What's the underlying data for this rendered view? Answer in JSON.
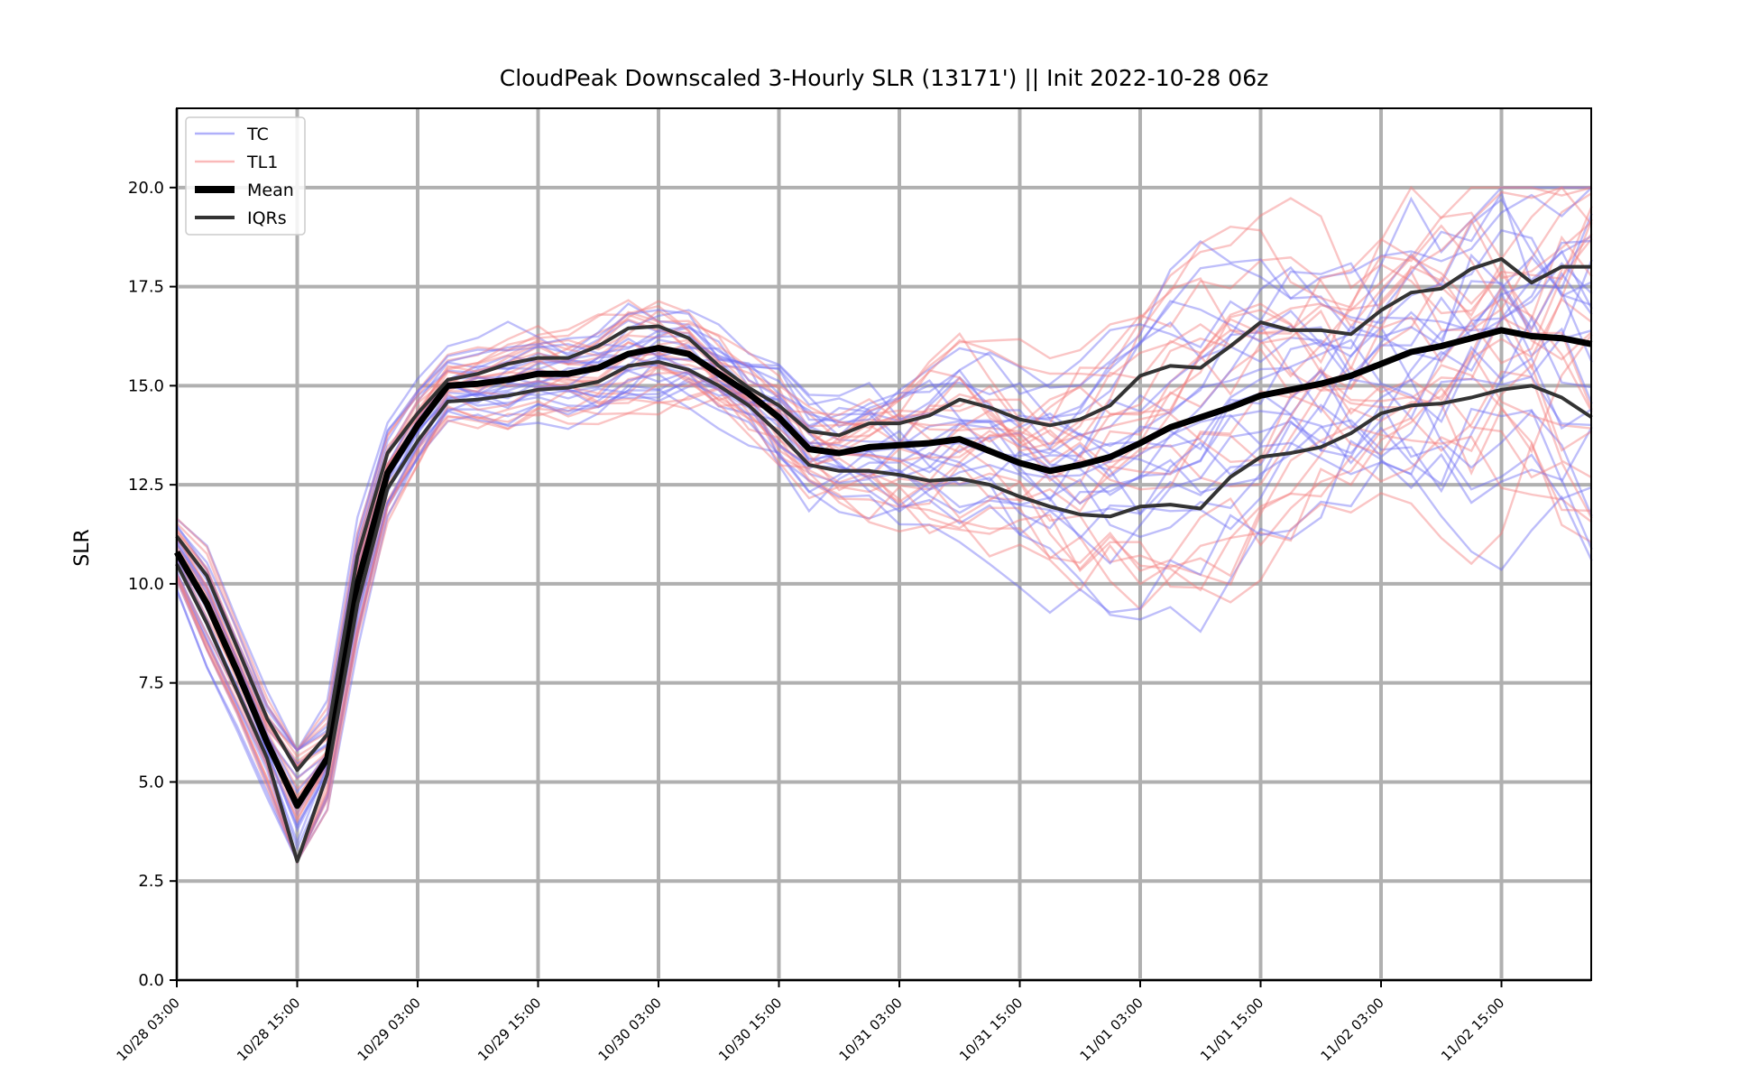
{
  "chart_data": {
    "type": "line",
    "title": "CloudPeak Downscaled 3-Hourly SLR (13171') || Init 2022-10-28 06z",
    "xlabel": "",
    "ylabel": "SLR",
    "ylim": [
      0,
      22
    ],
    "grid": true,
    "legend_placement": "top-left",
    "x_ticks": [
      "10/28 03:00",
      "10/28 15:00",
      "10/29 03:00",
      "10/29 15:00",
      "10/30 03:00",
      "10/30 15:00",
      "10/31 03:00",
      "10/31 15:00",
      "11/01 03:00",
      "11/01 15:00",
      "11/02 03:00",
      "11/02 15:00"
    ],
    "y_ticks": [
      "0.0",
      "2.5",
      "5.0",
      "7.5",
      "10.0",
      "12.5",
      "15.0",
      "17.5",
      "20.0"
    ],
    "x": [
      "10/28 03:00",
      "10/28 06:00",
      "10/28 09:00",
      "10/28 12:00",
      "10/28 15:00",
      "10/28 18:00",
      "10/28 21:00",
      "10/29 00:00",
      "10/29 03:00",
      "10/29 06:00",
      "10/29 09:00",
      "10/29 12:00",
      "10/29 15:00",
      "10/29 18:00",
      "10/29 21:00",
      "10/30 00:00",
      "10/30 03:00",
      "10/30 06:00",
      "10/30 09:00",
      "10/30 12:00",
      "10/30 15:00",
      "10/30 18:00",
      "10/30 21:00",
      "10/31 00:00",
      "10/31 03:00",
      "10/31 06:00",
      "10/31 09:00",
      "10/31 12:00",
      "10/31 15:00",
      "10/31 18:00",
      "10/31 21:00",
      "11/01 00:00",
      "11/01 03:00",
      "11/01 06:00",
      "11/01 09:00",
      "11/01 12:00",
      "11/01 15:00",
      "11/01 18:00",
      "11/01 21:00",
      "11/02 00:00",
      "11/02 03:00",
      "11/02 06:00",
      "11/02 09:00",
      "11/02 12:00",
      "11/02 15:00",
      "11/02 18:00",
      "11/02 21:00",
      "11/03 00:00"
    ],
    "legend": [
      {
        "label": "TC",
        "color": "#6f6ff5",
        "style": "thin"
      },
      {
        "label": "TL1",
        "color": "#f57f7f",
        "style": "thin"
      },
      {
        "label": "Mean",
        "color": "#000000",
        "style": "thick"
      },
      {
        "label": "IQRs",
        "color": "#333333",
        "style": "medium"
      }
    ],
    "series": [
      {
        "name": "Mean",
        "color": "#000000",
        "values": [
          10.8,
          9.5,
          7.8,
          6.0,
          4.4,
          5.6,
          10.0,
          12.8,
          14.0,
          15.0,
          15.05,
          15.15,
          15.3,
          15.3,
          15.45,
          15.8,
          15.95,
          15.8,
          15.3,
          14.8,
          14.2,
          13.4,
          13.3,
          13.45,
          13.5,
          13.55,
          13.65,
          13.35,
          13.05,
          12.85,
          13.0,
          13.2,
          13.55,
          13.95,
          14.2,
          14.45,
          14.75,
          14.9,
          15.05,
          15.25,
          15.55,
          15.85,
          16.0,
          16.2,
          16.4,
          16.25,
          16.2,
          16.05
        ]
      },
      {
        "name": "IQR upper",
        "color": "#333333",
        "values": [
          11.2,
          10.2,
          8.4,
          6.6,
          5.3,
          6.2,
          10.7,
          13.3,
          14.3,
          15.15,
          15.3,
          15.55,
          15.7,
          15.7,
          16.0,
          16.45,
          16.5,
          16.2,
          15.5,
          14.95,
          14.5,
          13.85,
          13.75,
          14.05,
          14.05,
          14.25,
          14.65,
          14.45,
          14.15,
          14.0,
          14.15,
          14.5,
          15.25,
          15.5,
          15.45,
          16.0,
          16.6,
          16.4,
          16.4,
          16.3,
          16.9,
          17.35,
          17.45,
          17.95,
          18.2,
          17.6,
          18.0,
          18.0
        ]
      },
      {
        "name": "IQR lower",
        "color": "#333333",
        "values": [
          10.5,
          9.0,
          7.3,
          5.6,
          3.0,
          5.2,
          9.5,
          12.4,
          13.6,
          14.6,
          14.65,
          14.75,
          14.9,
          14.95,
          15.1,
          15.5,
          15.6,
          15.4,
          15.0,
          14.5,
          13.8,
          13.0,
          12.85,
          12.85,
          12.75,
          12.6,
          12.65,
          12.5,
          12.2,
          11.95,
          11.75,
          11.7,
          11.95,
          12.0,
          11.9,
          12.7,
          13.2,
          13.3,
          13.45,
          13.8,
          14.3,
          14.5,
          14.55,
          14.7,
          14.9,
          15.0,
          14.7,
          14.2
        ]
      }
    ]
  }
}
